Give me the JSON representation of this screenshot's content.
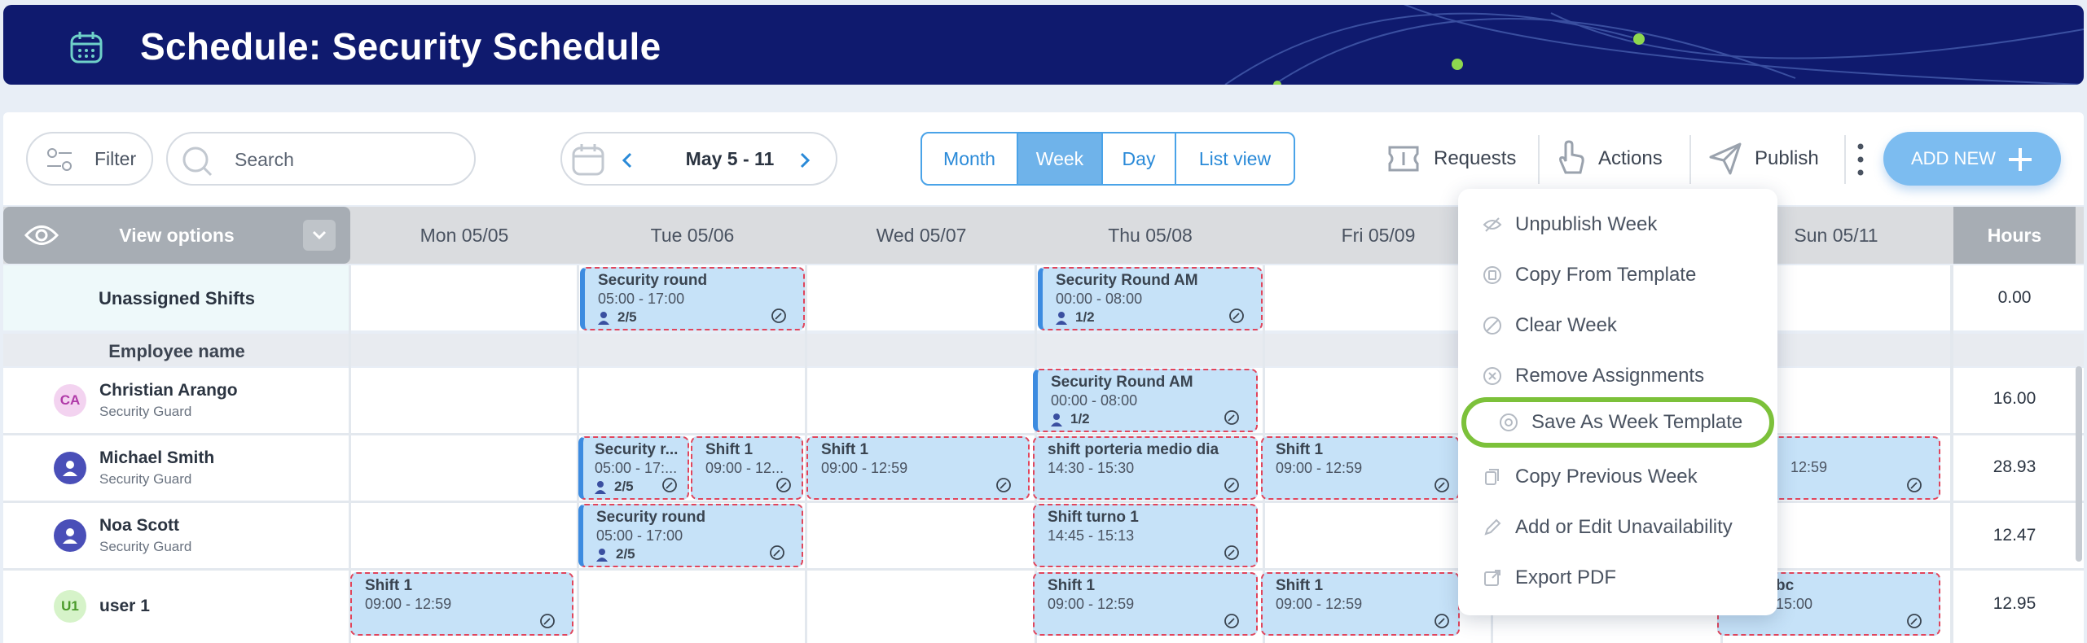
{
  "header": {
    "title": "Schedule: Security Schedule",
    "icon": "calendar-icon",
    "bg_color": "#0f1a6e"
  },
  "toolbar": {
    "filter_label": "Filter",
    "search_placeholder": "Search",
    "date_range": "May 5 - 11",
    "views": [
      "Month",
      "Week",
      "Day",
      "List view"
    ],
    "active_view": "Week",
    "requests_label": "Requests",
    "actions_label": "Actions",
    "publish_label": "Publish",
    "add_new_label": "ADD NEW"
  },
  "grid": {
    "view_options_label": "View options",
    "days": [
      "Mon 05/05",
      "Tue 05/06",
      "Wed 05/07",
      "Thu 05/08",
      "Fri 05/09",
      "Sun 05/11"
    ],
    "hours_label": "Hours",
    "unassigned_label": "Unassigned Shifts",
    "unassigned_hours": "0.00",
    "employee_name_label": "Employee name",
    "employees": [
      {
        "initials": "CA",
        "name": "Christian Arango",
        "role": "Security Guard",
        "hours": "16.00"
      },
      {
        "initials": "",
        "name": "Michael Smith",
        "role": "Security Guard",
        "hours": "28.93"
      },
      {
        "initials": "",
        "name": "Noa Scott",
        "role": "Security Guard",
        "hours": "12.47"
      },
      {
        "initials": "U1",
        "name": "user 1",
        "role": "",
        "hours": "12.95"
      }
    ]
  },
  "shifts": {
    "u_tue": {
      "title": "Security round",
      "time": "05:00 - 17:00",
      "count": "2/5"
    },
    "u_thu": {
      "title": "Security Round AM",
      "time": "00:00 - 08:00",
      "count": "1/2"
    },
    "ca_thu": {
      "title": "Security Round AM",
      "time": "00:00 - 08:00",
      "count": "1/2"
    },
    "ms_tue_a": {
      "title": "Security r...",
      "time": "05:00 - 17:...",
      "count": "2/5"
    },
    "ms_tue_b": {
      "title": "Shift 1",
      "time": "09:00 - 12..."
    },
    "ms_wed": {
      "title": "Shift 1",
      "time": "09:00 - 12:59"
    },
    "ms_thu": {
      "title": "shift porteria medio dia",
      "time": "14:30 - 15:30"
    },
    "ms_fri": {
      "title": "Shift 1",
      "time": "09:00 - 12:59"
    },
    "ms_sun": {
      "time": "12:59"
    },
    "ns_tue": {
      "title": "Security round",
      "time": "05:00 - 17:00",
      "count": "2/5"
    },
    "ns_thu": {
      "title": "Shift turno 1",
      "time": "14:45 - 15:13"
    },
    "u1_mon": {
      "title": "Shift 1",
      "time": "09:00 - 12:59"
    },
    "u1_thu": {
      "title": "Shift 1",
      "time": "09:00 - 12:59"
    },
    "u1_fri": {
      "title": "Shift 1",
      "time": "09:00 - 12:59"
    },
    "u1_sun": {
      "title": "bc",
      "time": "15:00"
    }
  },
  "menu": {
    "items": [
      {
        "label": "Unpublish Week",
        "icon": "eye-off-icon"
      },
      {
        "label": "Copy From Template",
        "icon": "copy-template-icon"
      },
      {
        "label": "Clear Week",
        "icon": "clear-icon"
      },
      {
        "label": "Remove Assignments",
        "icon": "remove-icon"
      },
      {
        "label": "Save As Week Template",
        "icon": "save-template-icon"
      },
      {
        "label": "Copy Previous Week",
        "icon": "copy-icon"
      },
      {
        "label": "Add or Edit Unavailability",
        "icon": "pencil-icon"
      },
      {
        "label": "Export PDF",
        "icon": "export-icon"
      }
    ],
    "highlight_color": "#7cc13a"
  },
  "colors": {
    "shift_bg": "#c6e2f8",
    "shift_border": "#e0455c",
    "accent": "#4aa3e8"
  }
}
